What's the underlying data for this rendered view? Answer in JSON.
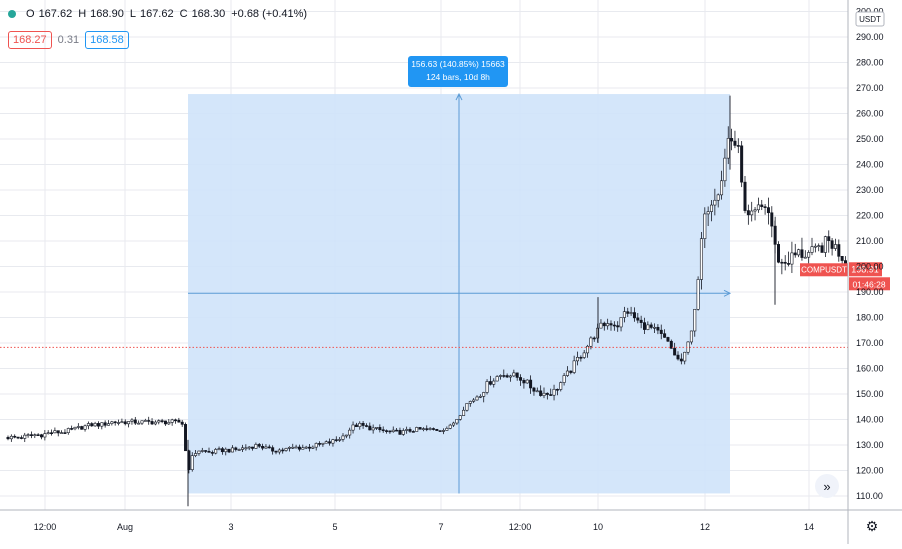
{
  "legend": {
    "o_label": "O",
    "o_value": "167.62",
    "h_label": "H",
    "h_value": "168.90",
    "l_label": "L",
    "l_value": "167.62",
    "c_label": "C",
    "c_value": "168.30",
    "change": "+0.68 (+0.41%)",
    "bid": "168.27",
    "spread": "0.31",
    "ask": "168.58"
  },
  "measure": {
    "line1": "156.63 (140.85%) 15663",
    "line2": "124 bars, 10d 8h"
  },
  "price_axis": {
    "currency": "USDT",
    "ticks": [
      "110.00",
      "120.00",
      "130.00",
      "140.00",
      "150.00",
      "160.00",
      "170.00",
      "180.00",
      "190.00",
      "200.00",
      "210.00",
      "220.00",
      "230.00",
      "240.00",
      "250.00",
      "260.00",
      "270.00",
      "280.00",
      "290.00",
      "300.00"
    ],
    "symbol_label": "COMPUSDT",
    "last_price": "198.91",
    "countdown": "01:46:28"
  },
  "time_axis": {
    "labels": [
      "12:00",
      "Aug",
      "3",
      "5",
      "7",
      "12:00",
      "10",
      "12",
      "14"
    ]
  },
  "colors": {
    "up": "#131722",
    "down": "#131722",
    "measure_fill": "#cfe3f9",
    "measure_line": "#5b9bd5",
    "price_tag": "#ef5350",
    "dotted_line": "#ef5350",
    "grid": "#e8eaef"
  },
  "icons": {
    "scroll": "double-chevron-right-icon",
    "settings": "gear-icon"
  },
  "chart_data": {
    "type": "candlestick",
    "symbol": "COMPUSDT",
    "y_unit": "USDT",
    "ylim": [
      106,
      305
    ],
    "grid": true,
    "last_price": 198.91,
    "dotted_level": 168.3,
    "measure": {
      "from_price": 111,
      "to_price": 267.63,
      "change": 156.63,
      "percent": 140.85,
      "bars": 124,
      "duration": "10d 8h"
    },
    "anchors": [
      [
        0,
        133
      ],
      [
        12,
        133
      ],
      [
        22,
        133
      ],
      [
        32,
        134
      ],
      [
        42,
        134
      ],
      [
        52,
        135
      ],
      [
        62,
        135
      ],
      [
        72,
        136
      ],
      [
        82,
        137
      ],
      [
        92,
        138
      ],
      [
        102,
        138
      ],
      [
        112,
        139
      ],
      [
        122,
        139
      ],
      [
        132,
        139
      ],
      [
        142,
        139
      ],
      [
        152,
        139
      ],
      [
        162,
        139
      ],
      [
        172,
        139
      ],
      [
        182,
        139
      ],
      [
        188,
        120
      ],
      [
        193,
        126
      ],
      [
        198,
        128
      ],
      [
        210,
        127
      ],
      [
        222,
        128
      ],
      [
        234,
        128
      ],
      [
        246,
        129
      ],
      [
        258,
        130
      ],
      [
        270,
        128
      ],
      [
        282,
        128
      ],
      [
        294,
        129
      ],
      [
        306,
        129
      ],
      [
        318,
        130
      ],
      [
        330,
        131
      ],
      [
        342,
        133
      ],
      [
        352,
        137
      ],
      [
        358,
        138
      ],
      [
        366,
        137
      ],
      [
        378,
        136
      ],
      [
        390,
        135
      ],
      [
        402,
        135
      ],
      [
        414,
        136
      ],
      [
        426,
        136
      ],
      [
        438,
        136
      ],
      [
        450,
        137
      ],
      [
        458,
        141
      ],
      [
        466,
        146
      ],
      [
        474,
        148
      ],
      [
        482,
        151
      ],
      [
        490,
        155
      ],
      [
        498,
        157
      ],
      [
        506,
        158
      ],
      [
        514,
        157
      ],
      [
        522,
        156
      ],
      [
        530,
        153
      ],
      [
        538,
        151
      ],
      [
        546,
        150
      ],
      [
        554,
        151
      ],
      [
        562,
        155
      ],
      [
        570,
        159
      ],
      [
        578,
        164
      ],
      [
        586,
        168
      ],
      [
        594,
        173
      ],
      [
        602,
        177
      ],
      [
        610,
        178
      ],
      [
        618,
        177
      ],
      [
        626,
        183
      ],
      [
        634,
        180
      ],
      [
        642,
        177
      ],
      [
        650,
        176
      ],
      [
        658,
        174
      ],
      [
        666,
        171
      ],
      [
        674,
        166
      ],
      [
        680,
        162
      ],
      [
        686,
        166
      ],
      [
        692,
        177
      ],
      [
        698,
        192
      ],
      [
        702,
        213
      ],
      [
        708,
        224
      ],
      [
        714,
        228
      ],
      [
        720,
        232
      ],
      [
        724,
        240
      ],
      [
        728,
        250
      ],
      [
        731,
        250
      ],
      [
        735,
        248
      ],
      [
        740,
        243
      ],
      [
        745,
        220
      ],
      [
        750,
        218
      ],
      [
        758,
        222
      ],
      [
        766,
        224
      ],
      [
        771,
        218
      ],
      [
        776,
        205
      ],
      [
        782,
        201
      ],
      [
        790,
        203
      ],
      [
        798,
        205
      ],
      [
        806,
        205
      ],
      [
        814,
        205
      ],
      [
        822,
        208
      ],
      [
        830,
        210
      ],
      [
        838,
        206
      ],
      [
        845,
        203
      ],
      [
        848,
        201
      ]
    ]
  }
}
